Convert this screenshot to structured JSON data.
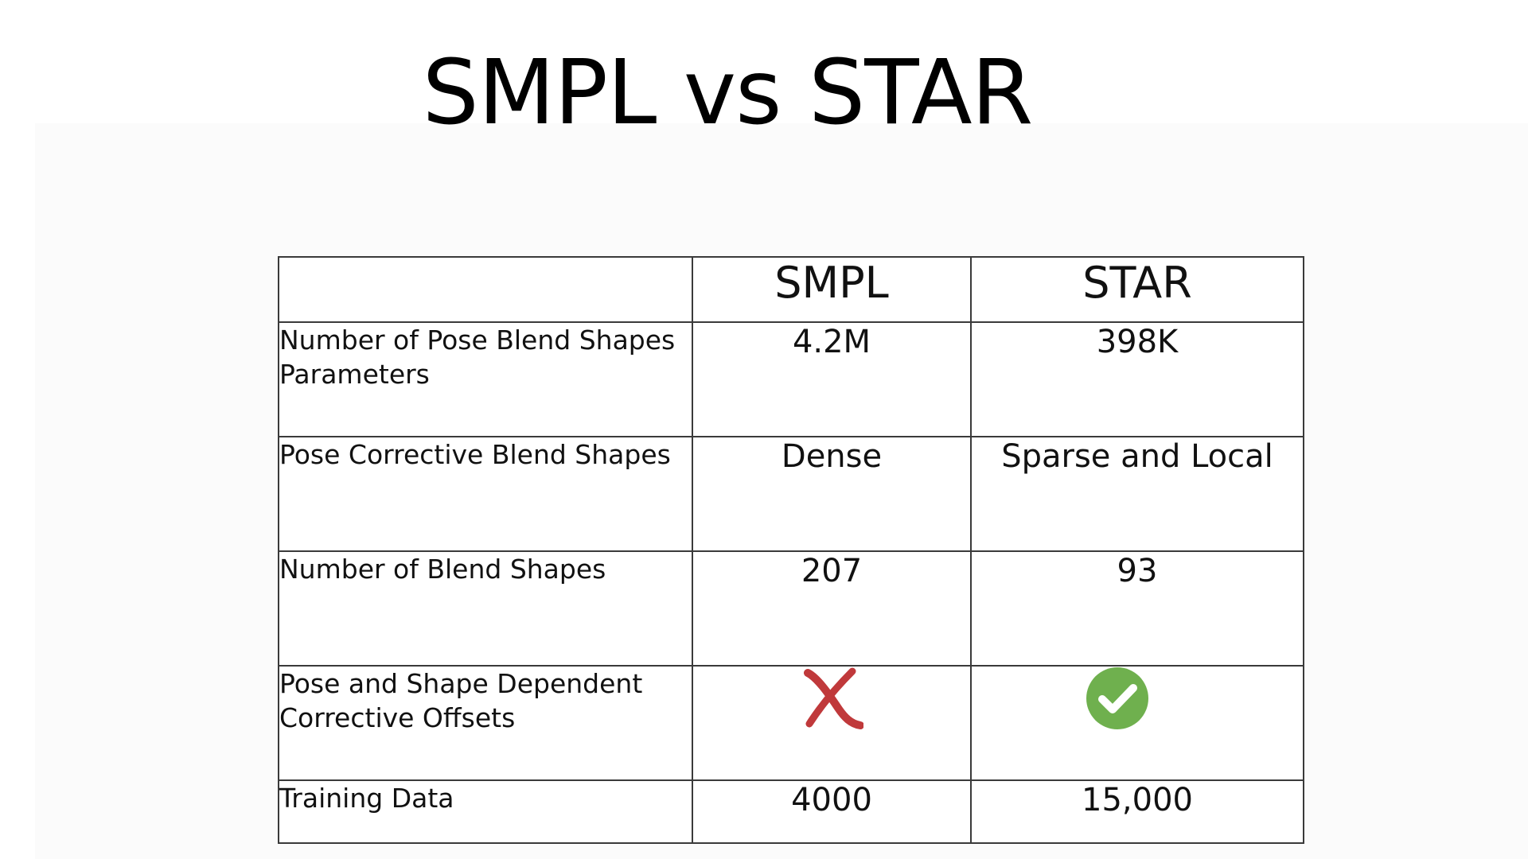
{
  "title": "SMPL vs STAR",
  "table": {
    "header": {
      "corner": "",
      "col1": "SMPL",
      "col2": "STAR"
    },
    "rows": [
      {
        "label": "Number of Pose Blend Shapes Parameters",
        "smpl": "4.2M",
        "star": "398K"
      },
      {
        "label": "Pose Corrective Blend Shapes",
        "smpl": "Dense",
        "star": "Sparse and Local"
      },
      {
        "label": "Number of Blend Shapes",
        "smpl": "207",
        "star": "93"
      },
      {
        "label": "Pose and Shape Dependent Corrective  Offsets",
        "smpl_icon": "cross-icon",
        "star_icon": "check-circle-icon"
      },
      {
        "label": "Training Data",
        "smpl": "4000",
        "star": "15,000"
      }
    ]
  },
  "colors": {
    "cross": "#c0393b",
    "check": "#6fb04e",
    "border": "#3a3a3a"
  }
}
